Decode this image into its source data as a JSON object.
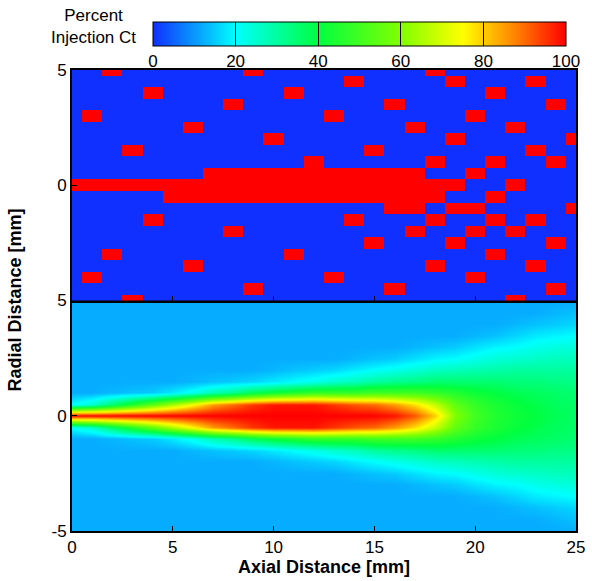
{
  "chart_data": [
    {
      "type": "heatmap",
      "x": [
        0,
        1,
        2,
        3,
        4,
        5,
        6,
        7,
        8,
        9,
        10,
        11,
        12,
        13,
        14,
        15,
        16,
        17,
        18,
        19,
        20,
        21,
        22,
        23,
        24,
        25
      ],
      "y": [
        -5,
        -4.5,
        -4,
        -3.5,
        -3,
        -2.5,
        -2,
        -1.5,
        -1,
        -0.5,
        0,
        0.5,
        1,
        1.5,
        2,
        2.5,
        3,
        3.5,
        4,
        4.5,
        5
      ],
      "z": [
        [
          0,
          0,
          0,
          100,
          0,
          0,
          0,
          0,
          0,
          0,
          0,
          0,
          0,
          0,
          0,
          0,
          0,
          0,
          0,
          0,
          0,
          0,
          100,
          0,
          0,
          0
        ],
        [
          0,
          0,
          0,
          0,
          0,
          0,
          0,
          0,
          0,
          100,
          0,
          0,
          0,
          0,
          0,
          0,
          100,
          0,
          0,
          0,
          0,
          0,
          0,
          0,
          100,
          0
        ],
        [
          0,
          100,
          0,
          0,
          0,
          0,
          0,
          0,
          0,
          0,
          0,
          0,
          0,
          100,
          0,
          0,
          0,
          0,
          0,
          0,
          100,
          0,
          0,
          0,
          0,
          0
        ],
        [
          0,
          0,
          0,
          0,
          0,
          0,
          100,
          0,
          0,
          0,
          0,
          0,
          0,
          0,
          0,
          0,
          0,
          0,
          100,
          0,
          0,
          0,
          0,
          100,
          0,
          0
        ],
        [
          0,
          0,
          100,
          0,
          0,
          0,
          0,
          0,
          0,
          0,
          0,
          100,
          0,
          0,
          0,
          0,
          0,
          0,
          0,
          0,
          0,
          100,
          0,
          0,
          0,
          0
        ],
        [
          0,
          0,
          0,
          0,
          0,
          0,
          0,
          0,
          0,
          0,
          0,
          0,
          0,
          0,
          0,
          100,
          0,
          0,
          0,
          100,
          0,
          0,
          0,
          0,
          100,
          0
        ],
        [
          0,
          0,
          0,
          0,
          0,
          0,
          0,
          0,
          100,
          0,
          0,
          0,
          0,
          0,
          0,
          0,
          0,
          100,
          0,
          0,
          100,
          0,
          100,
          0,
          0,
          0
        ],
        [
          0,
          0,
          0,
          0,
          100,
          0,
          0,
          0,
          0,
          0,
          0,
          0,
          0,
          0,
          100,
          0,
          0,
          0,
          100,
          0,
          0,
          100,
          0,
          100,
          0,
          0
        ],
        [
          0,
          0,
          0,
          0,
          0,
          0,
          0,
          0,
          0,
          0,
          0,
          0,
          0,
          0,
          0,
          0,
          100,
          100,
          0,
          100,
          100,
          0,
          0,
          0,
          0,
          100
        ],
        [
          0,
          0,
          0,
          0,
          0,
          100,
          100,
          100,
          100,
          100,
          100,
          100,
          100,
          100,
          100,
          100,
          100,
          100,
          100,
          0,
          0,
          100,
          0,
          0,
          0,
          0
        ],
        [
          100,
          100,
          100,
          100,
          100,
          100,
          100,
          100,
          100,
          100,
          100,
          100,
          100,
          100,
          100,
          100,
          100,
          100,
          100,
          100,
          0,
          0,
          100,
          0,
          0,
          0
        ],
        [
          0,
          0,
          0,
          0,
          0,
          0,
          0,
          100,
          100,
          100,
          100,
          100,
          100,
          100,
          100,
          100,
          100,
          100,
          0,
          0,
          100,
          0,
          0,
          0,
          0,
          0
        ],
        [
          0,
          0,
          0,
          0,
          0,
          0,
          0,
          0,
          0,
          0,
          0,
          0,
          100,
          0,
          0,
          0,
          0,
          0,
          100,
          0,
          0,
          100,
          0,
          0,
          100,
          0
        ],
        [
          0,
          0,
          0,
          100,
          0,
          0,
          0,
          0,
          0,
          0,
          0,
          0,
          0,
          0,
          0,
          100,
          0,
          0,
          0,
          0,
          0,
          0,
          0,
          100,
          0,
          0
        ],
        [
          0,
          0,
          0,
          0,
          0,
          0,
          0,
          0,
          0,
          0,
          100,
          0,
          0,
          0,
          0,
          0,
          0,
          0,
          0,
          100,
          0,
          0,
          0,
          0,
          0,
          100
        ],
        [
          0,
          0,
          0,
          0,
          0,
          0,
          100,
          0,
          0,
          0,
          0,
          0,
          0,
          0,
          0,
          0,
          0,
          100,
          0,
          0,
          0,
          0,
          100,
          0,
          0,
          0
        ],
        [
          0,
          100,
          0,
          0,
          0,
          0,
          0,
          0,
          0,
          0,
          0,
          0,
          0,
          100,
          0,
          0,
          0,
          0,
          0,
          0,
          100,
          0,
          0,
          0,
          0,
          0
        ],
        [
          0,
          0,
          0,
          0,
          0,
          0,
          0,
          0,
          100,
          0,
          0,
          0,
          0,
          0,
          0,
          0,
          100,
          0,
          0,
          0,
          0,
          0,
          0,
          0,
          100,
          0
        ],
        [
          0,
          0,
          0,
          0,
          100,
          0,
          0,
          0,
          0,
          0,
          0,
          100,
          0,
          0,
          0,
          0,
          0,
          0,
          0,
          0,
          0,
          100,
          0,
          0,
          0,
          0
        ],
        [
          0,
          0,
          0,
          0,
          0,
          0,
          0,
          0,
          0,
          0,
          0,
          0,
          0,
          0,
          100,
          0,
          0,
          0,
          0,
          100,
          0,
          0,
          0,
          100,
          0,
          0
        ],
        [
          0,
          0,
          100,
          0,
          0,
          0,
          0,
          0,
          0,
          100,
          0,
          0,
          0,
          0,
          0,
          0,
          0,
          0,
          100,
          0,
          0,
          0,
          0,
          0,
          0,
          0
        ]
      ],
      "xlim": [
        0,
        25
      ],
      "ylim": [
        -5,
        5
      ],
      "xticks": [
        0,
        5,
        10,
        15,
        20,
        25
      ],
      "yticks": [
        0,
        5
      ],
      "tick_labels": "y"
    },
    {
      "type": "heatmap",
      "x": [
        0,
        1,
        2,
        3,
        4,
        5,
        6,
        7,
        8,
        9,
        10,
        11,
        12,
        13,
        14,
        15,
        16,
        17,
        18,
        19,
        20,
        21,
        22,
        23,
        24,
        25
      ],
      "y": [
        -5,
        -4.5,
        -4,
        -3.5,
        -3,
        -2.5,
        -2,
        -1.5,
        -1,
        -0.5,
        0,
        0.5,
        1,
        1.5,
        2,
        2.5,
        3,
        3.5,
        4,
        4.5,
        5
      ],
      "z": [
        [
          12,
          12,
          12,
          12,
          12,
          12,
          12,
          12,
          12,
          12,
          12,
          12,
          12,
          12,
          12,
          12,
          12,
          12,
          12,
          12,
          12,
          12,
          12,
          12,
          12,
          12
        ],
        [
          12,
          12,
          12,
          12,
          12,
          12,
          12,
          12,
          12,
          12,
          12,
          12,
          12,
          12,
          12,
          12,
          12,
          12,
          12,
          12,
          12,
          12,
          12,
          12,
          13,
          14
        ],
        [
          12,
          12,
          12,
          12,
          12,
          12,
          12,
          12,
          12,
          12,
          12,
          12,
          12,
          12,
          12,
          12,
          12,
          12,
          12,
          12,
          12,
          12,
          13,
          14,
          15,
          16
        ],
        [
          12,
          12,
          12,
          12,
          12,
          12,
          12,
          12,
          12,
          12,
          12,
          12,
          12,
          12,
          12,
          12,
          12,
          12,
          12,
          12,
          13,
          14,
          16,
          18,
          19,
          20
        ],
        [
          12,
          12,
          12,
          12,
          12,
          12,
          12,
          12,
          12,
          12,
          12,
          12,
          12,
          12,
          12,
          12,
          12,
          13,
          14,
          15,
          17,
          19,
          20,
          22,
          23,
          24
        ],
        [
          12,
          12,
          12,
          12,
          12,
          12,
          12,
          12,
          12,
          12,
          12,
          12,
          12,
          12,
          13,
          14,
          15,
          17,
          19,
          20,
          22,
          24,
          25,
          26,
          27,
          27
        ],
        [
          12,
          12,
          12,
          12,
          12,
          12,
          12,
          12,
          12,
          12,
          13,
          14,
          15,
          16,
          18,
          20,
          22,
          24,
          26,
          27,
          28,
          29,
          30,
          30,
          30,
          30
        ],
        [
          12,
          12,
          12,
          12,
          12,
          12,
          13,
          14,
          15,
          16,
          18,
          20,
          22,
          25,
          27,
          30,
          32,
          33,
          35,
          35,
          35,
          35,
          34,
          34,
          33,
          33
        ],
        [
          12,
          12,
          13,
          14,
          15,
          18,
          22,
          28,
          32,
          38,
          42,
          45,
          48,
          48,
          48,
          50,
          50,
          50,
          48,
          45,
          42,
          40,
          38,
          37,
          36,
          35
        ],
        [
          20,
          25,
          35,
          45,
          55,
          65,
          75,
          85,
          90,
          95,
          98,
          98,
          98,
          95,
          92,
          90,
          85,
          78,
          68,
          55,
          48,
          44,
          41,
          39,
          37,
          36
        ],
        [
          100,
          100,
          100,
          100,
          100,
          100,
          100,
          100,
          100,
          100,
          100,
          100,
          100,
          100,
          100,
          100,
          98,
          92,
          80,
          60,
          50,
          45,
          42,
          40,
          38,
          36
        ],
        [
          20,
          25,
          35,
          45,
          55,
          65,
          75,
          85,
          90,
          95,
          98,
          98,
          98,
          95,
          92,
          90,
          85,
          78,
          68,
          55,
          48,
          44,
          41,
          39,
          37,
          36
        ],
        [
          12,
          12,
          13,
          14,
          15,
          18,
          22,
          28,
          32,
          38,
          42,
          45,
          48,
          48,
          48,
          50,
          50,
          50,
          48,
          45,
          42,
          40,
          38,
          37,
          36,
          35
        ],
        [
          12,
          12,
          12,
          12,
          12,
          12,
          13,
          14,
          15,
          16,
          18,
          20,
          22,
          25,
          27,
          30,
          32,
          33,
          35,
          35,
          35,
          35,
          34,
          34,
          33,
          33
        ],
        [
          12,
          12,
          12,
          12,
          12,
          12,
          12,
          12,
          12,
          12,
          13,
          14,
          15,
          16,
          18,
          20,
          22,
          24,
          26,
          27,
          28,
          29,
          30,
          30,
          30,
          30
        ],
        [
          12,
          12,
          12,
          12,
          12,
          12,
          12,
          12,
          12,
          12,
          12,
          12,
          12,
          12,
          13,
          14,
          15,
          17,
          19,
          20,
          22,
          24,
          25,
          26,
          27,
          27
        ],
        [
          12,
          12,
          12,
          12,
          12,
          12,
          12,
          12,
          12,
          12,
          12,
          12,
          12,
          12,
          12,
          12,
          12,
          13,
          14,
          15,
          17,
          19,
          20,
          22,
          23,
          24
        ],
        [
          12,
          12,
          12,
          12,
          12,
          12,
          12,
          12,
          12,
          12,
          12,
          12,
          12,
          12,
          12,
          12,
          12,
          12,
          12,
          12,
          13,
          14,
          16,
          18,
          19,
          20
        ],
        [
          12,
          12,
          12,
          12,
          12,
          12,
          12,
          12,
          12,
          12,
          12,
          12,
          12,
          12,
          12,
          12,
          12,
          12,
          12,
          12,
          12,
          12,
          13,
          14,
          15,
          16
        ],
        [
          12,
          12,
          12,
          12,
          12,
          12,
          12,
          12,
          12,
          12,
          12,
          12,
          12,
          12,
          12,
          12,
          12,
          12,
          12,
          12,
          12,
          12,
          12,
          12,
          13,
          14
        ],
        [
          12,
          12,
          12,
          12,
          12,
          12,
          12,
          12,
          12,
          12,
          12,
          12,
          12,
          12,
          12,
          12,
          12,
          12,
          12,
          12,
          12,
          12,
          12,
          12,
          12,
          12
        ]
      ],
      "xlim": [
        0,
        25
      ],
      "ylim": [
        -5,
        5
      ],
      "xticks": [
        0,
        5,
        10,
        15,
        20,
        25
      ],
      "yticks": [
        -5,
        0,
        5
      ],
      "xlabel": "Axial Distance [mm]",
      "ylabel": "Radial Distance [mm]",
      "colorbar": {
        "title": "Percent Injection Ct",
        "range": [
          0,
          100
        ],
        "ticks": [
          0,
          20,
          40,
          60,
          80,
          100
        ]
      }
    }
  ]
}
